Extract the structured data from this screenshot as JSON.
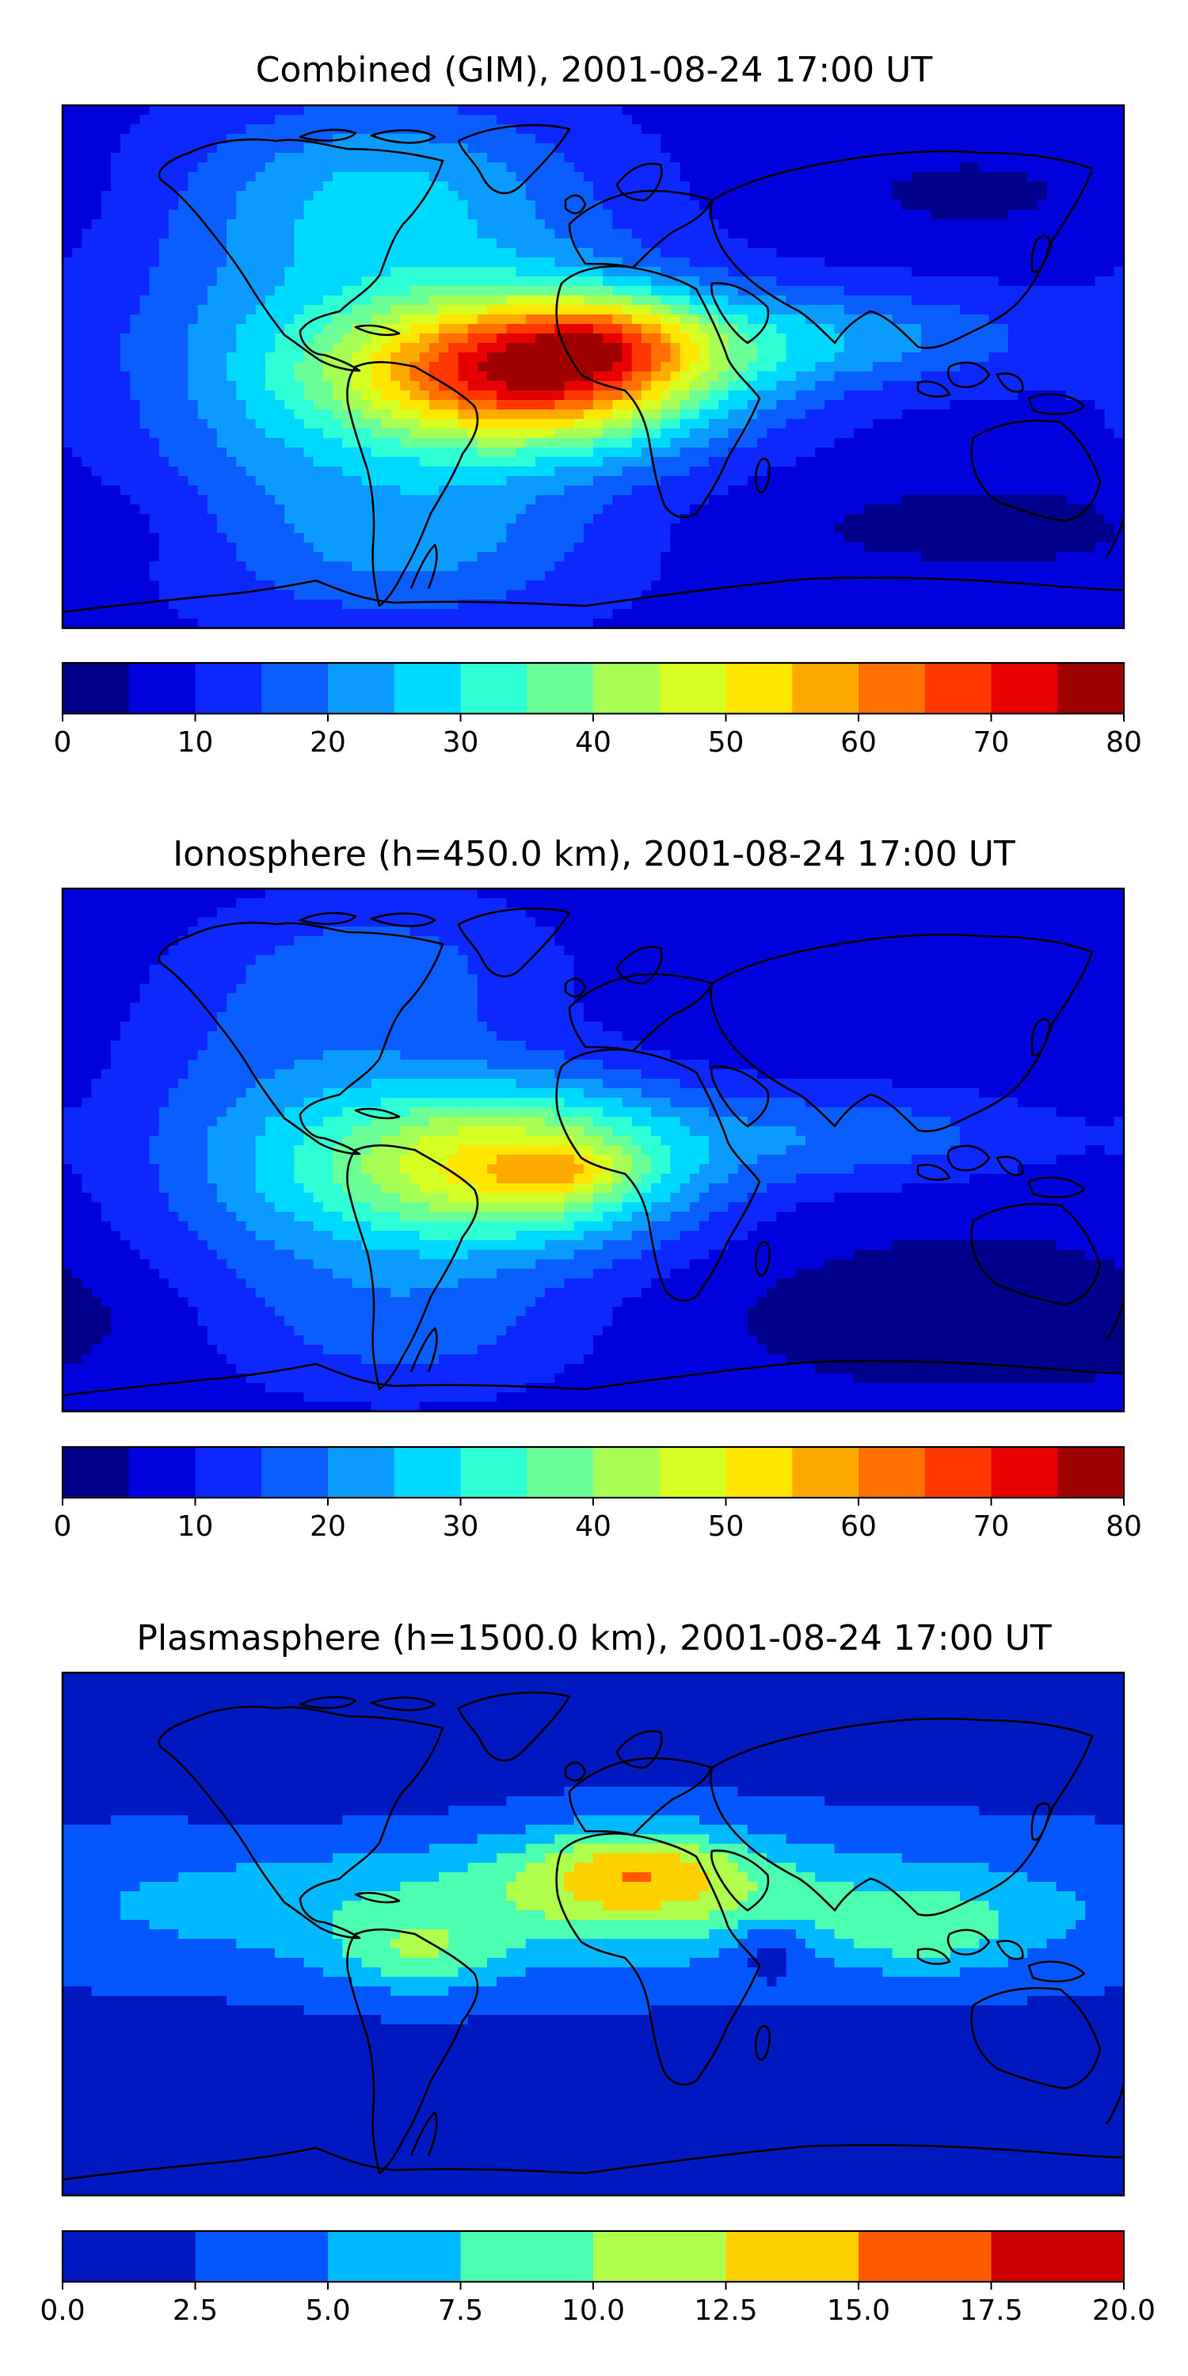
{
  "figure": {
    "palettes": {
      "jet16": [
        "#00008b",
        "#0000dc",
        "#0c28ff",
        "#0b5efe",
        "#0b9bff",
        "#00d9ff",
        "#2fffd5",
        "#6aff97",
        "#a7ff56",
        "#d6ff24",
        "#ffe600",
        "#ffaa00",
        "#ff7000",
        "#ff3800",
        "#e60000",
        "#9f0000"
      ],
      "jet8": [
        "#0018c0",
        "#0456ff",
        "#00b9ff",
        "#4cffb0",
        "#b0ff4c",
        "#ffd000",
        "#ff5a00",
        "#cc0000"
      ]
    },
    "coastline_color": "#000000"
  },
  "chart_data": [
    {
      "type": "heatmap",
      "title": "Combined (GIM), 2001-08-24 17:00 UT",
      "x_range": [
        -180,
        180
      ],
      "y_range": [
        -90,
        90
      ],
      "levels": [
        0,
        5,
        10,
        15,
        20,
        25,
        30,
        35,
        40,
        45,
        50,
        55,
        60,
        65,
        70,
        75,
        80
      ],
      "colorbar": {
        "ticks": [
          0,
          10,
          20,
          30,
          40,
          50,
          60,
          70,
          80
        ],
        "tick_labels": [
          "0",
          "10",
          "20",
          "30",
          "40",
          "50",
          "60",
          "70",
          "80"
        ]
      },
      "field": {
        "base": 8,
        "features": [
          {
            "lon": -20,
            "lat": -2,
            "amp": 58,
            "slon": 45,
            "slat": 18
          },
          {
            "lon": 5,
            "lat": 10,
            "amp": 14,
            "slon": 22,
            "slat": 10
          },
          {
            "lon": -35,
            "lat": 10,
            "amp": 10,
            "slon": 45,
            "slat": 35
          },
          {
            "lon": 80,
            "lat": 10,
            "amp": 14,
            "slon": 50,
            "slat": 12
          },
          {
            "lon": -110,
            "lat": 0,
            "amp": 12,
            "slon": 40,
            "slat": 40
          },
          {
            "lon": -60,
            "lat": -60,
            "amp": 12,
            "slon": 45,
            "slat": 20
          },
          {
            "lon": -70,
            "lat": 62,
            "amp": 14,
            "slon": 45,
            "slat": 22
          },
          {
            "lon": 130,
            "lat": 60,
            "amp": -4,
            "slon": 40,
            "slat": 12
          },
          {
            "lon": 140,
            "lat": -55,
            "amp": -5,
            "slon": 60,
            "slat": 12
          }
        ]
      },
      "peak_value": 74
    },
    {
      "type": "heatmap",
      "title": "Ionosphere  (h=450.0 km), 2001-08-24 17:00 UT",
      "x_range": [
        -180,
        180
      ],
      "y_range": [
        -90,
        90
      ],
      "levels": [
        0,
        5,
        10,
        15,
        20,
        25,
        30,
        35,
        40,
        45,
        50,
        55,
        60,
        65,
        70,
        75,
        80
      ],
      "colorbar": {
        "ticks": [
          0,
          10,
          20,
          30,
          40,
          50,
          60,
          70,
          80
        ],
        "tick_labels": [
          "0",
          "10",
          "20",
          "30",
          "40",
          "50",
          "60",
          "70",
          "80"
        ]
      },
      "field": {
        "base": 6,
        "features": [
          {
            "lon": -30,
            "lat": -5,
            "amp": 44,
            "slon": 45,
            "slat": 20
          },
          {
            "lon": -10,
            "lat": -8,
            "amp": 12,
            "slon": 15,
            "slat": 6
          },
          {
            "lon": 90,
            "lat": 5,
            "amp": 12,
            "slon": 45,
            "slat": 12
          },
          {
            "lon": -110,
            "lat": 0,
            "amp": 12,
            "slon": 40,
            "slat": 38
          },
          {
            "lon": -60,
            "lat": -60,
            "amp": 10,
            "slon": 45,
            "slat": 20
          },
          {
            "lon": -70,
            "lat": 62,
            "amp": 10,
            "slon": 45,
            "slat": 22
          },
          {
            "lon": 140,
            "lat": -55,
            "amp": -5,
            "slon": 60,
            "slat": 15
          }
        ]
      },
      "peak_value": 67
    },
    {
      "type": "heatmap",
      "title": "Plasmasphere (h=1500.0 km), 2001-08-24 17:00 UT",
      "x_range": [
        -180,
        180
      ],
      "y_range": [
        -90,
        90
      ],
      "levels": [
        0.0,
        2.5,
        5.0,
        7.5,
        10.0,
        12.5,
        15.0,
        17.5,
        20.0
      ],
      "colorbar": {
        "ticks": [
          0.0,
          2.5,
          5.0,
          7.5,
          10.0,
          12.5,
          15.0,
          17.5,
          20.0
        ],
        "tick_labels": [
          "0.0",
          "2.5",
          "5.0",
          "7.5",
          "10.0",
          "12.5",
          "15.0",
          "17.5",
          "20.0"
        ]
      },
      "field": {
        "base": 2,
        "features": [
          {
            "lon": 0,
            "lat": 10,
            "amp": 6.5,
            "slon": 130,
            "slat": 16
          },
          {
            "lon": 15,
            "lat": 22,
            "amp": 8,
            "slon": 28,
            "slat": 11
          },
          {
            "lon": -60,
            "lat": -8,
            "amp": 5,
            "slon": 20,
            "slat": 9
          },
          {
            "lon": 115,
            "lat": 0,
            "amp": 4,
            "slon": 22,
            "slat": 10
          },
          {
            "lon": 60,
            "lat": -5,
            "amp": -4,
            "slon": 9,
            "slat": 7
          },
          {
            "lon": -90,
            "lat": 60,
            "amp": -1.5,
            "slon": 35,
            "slat": 14
          }
        ]
      },
      "peak_value": 16.1
    }
  ]
}
